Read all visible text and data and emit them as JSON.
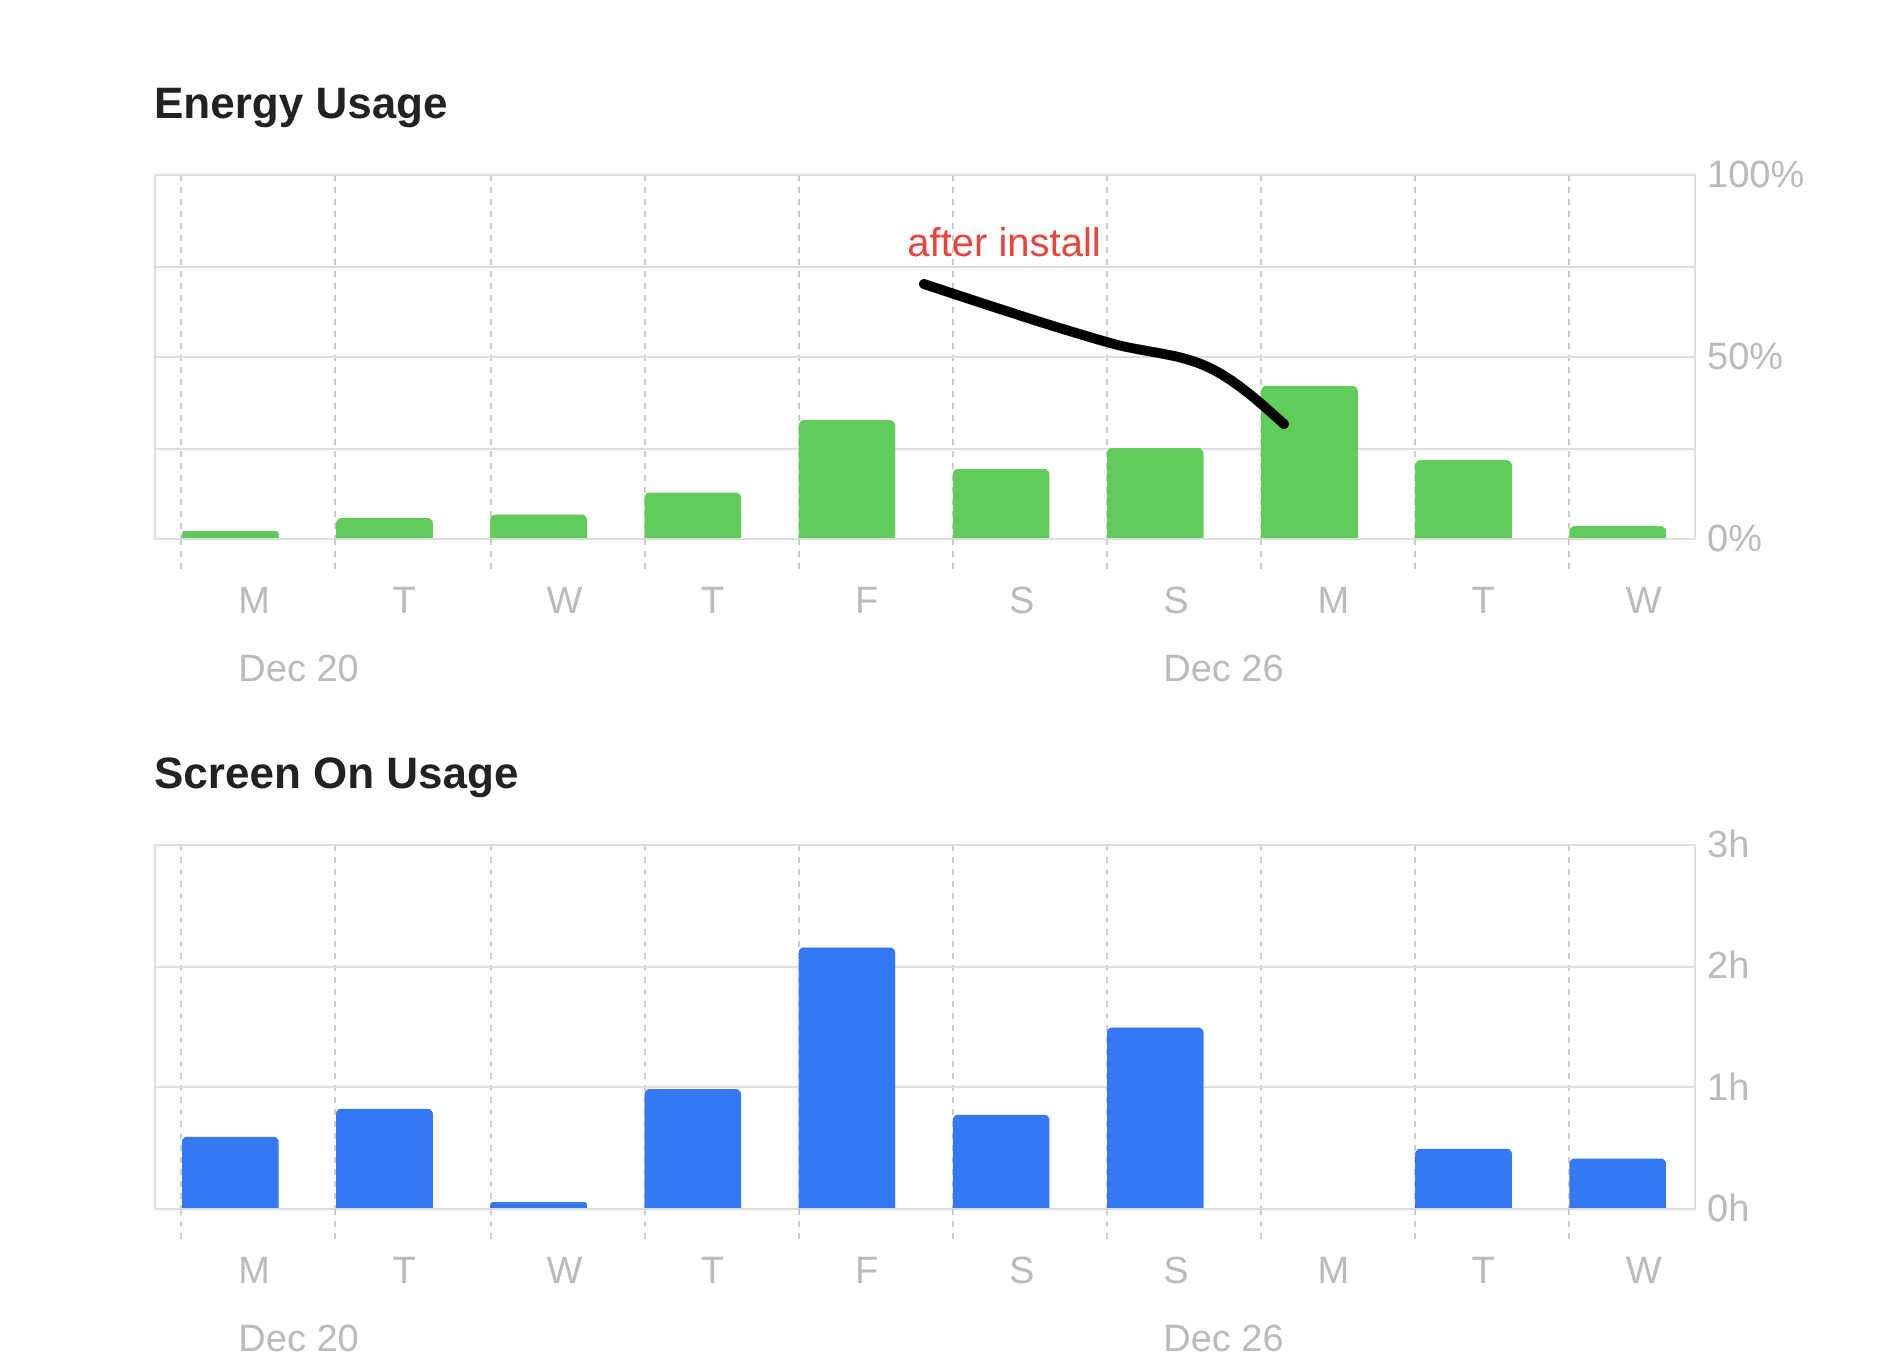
{
  "chart_data": [
    {
      "type": "bar",
      "title": "Energy Usage",
      "categories": [
        "M\nDec 20",
        "T",
        "W",
        "T",
        "F",
        "S",
        "S\nDec 26",
        "M",
        "T",
        "W"
      ],
      "series": [
        {
          "color": "#62cc5a",
          "values": [
            2,
            5.5,
            6.5,
            12.6,
            32.4,
            19,
            24.7,
            41.8,
            21.4,
            3.3
          ]
        }
      ],
      "ylim": [
        0,
        100
      ],
      "yticks": [
        {
          "value": 0,
          "label": "0%"
        },
        {
          "value": 25,
          "label": null
        },
        {
          "value": 50,
          "label": "50%"
        },
        {
          "value": 75,
          "label": null
        },
        {
          "value": 100,
          "label": "100%"
        }
      ],
      "grid": true,
      "annotations": [
        "after install"
      ]
    },
    {
      "type": "bar",
      "title": "Screen On Usage",
      "categories": [
        "M\nDec 20",
        "T",
        "W",
        "T",
        "F",
        "S",
        "S\nDec 26",
        "M",
        "T",
        "W"
      ],
      "series": [
        {
          "color": "#3478f6",
          "values": [
            0.59,
            0.82,
            0.05,
            0.98,
            2.15,
            0.77,
            1.49,
            0,
            0.49,
            0.41
          ]
        }
      ],
      "ylim": [
        0,
        3
      ],
      "yticks": [
        {
          "value": 0,
          "label": "0h"
        },
        {
          "value": 1,
          "label": "1h"
        },
        {
          "value": 2,
          "label": "2h"
        },
        {
          "value": 3,
          "label": "3h"
        }
      ],
      "grid": true
    }
  ]
}
